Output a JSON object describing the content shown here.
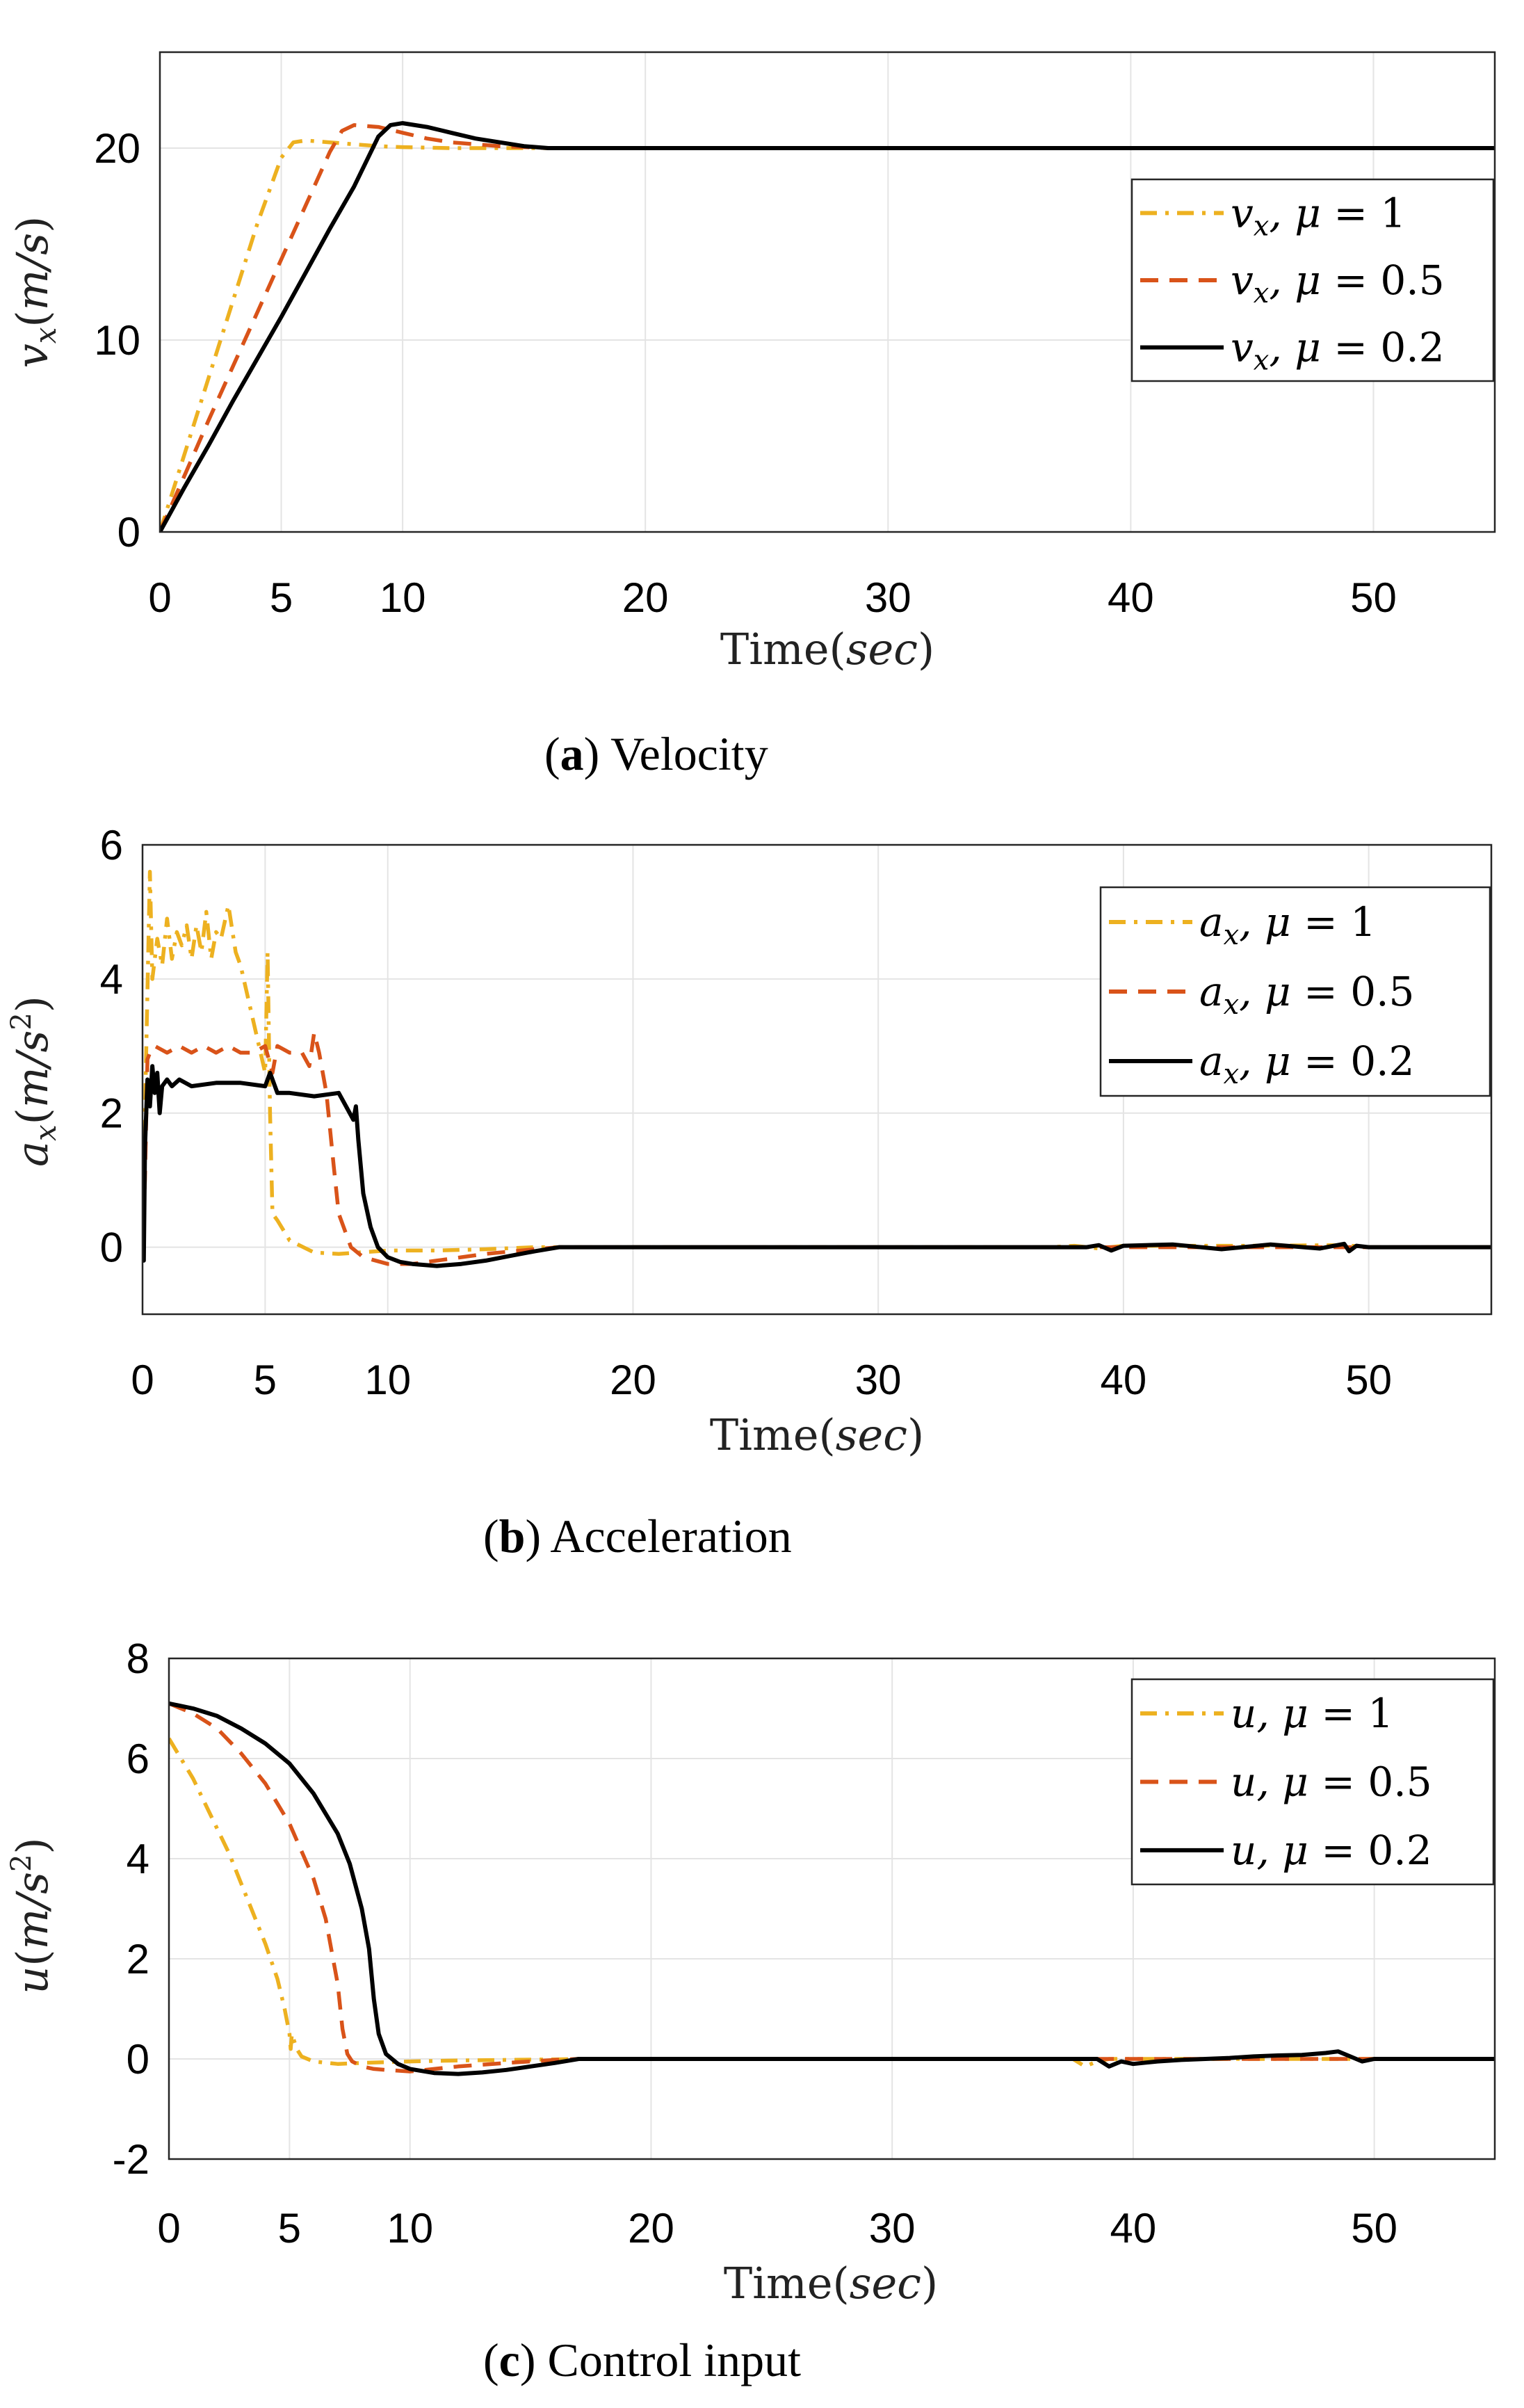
{
  "captions": [
    {
      "letter": "a",
      "text": "Velocity"
    },
    {
      "letter": "b",
      "text": "Acceleration"
    },
    {
      "letter": "c",
      "text": "Control input"
    }
  ],
  "colors": {
    "mu1": "#EDB120",
    "mu05": "#D95319",
    "mu02": "#000000"
  },
  "chart_data": [
    {
      "type": "line",
      "title": "Velocity",
      "xlabel": "Time(sec)",
      "ylabel": "v_x(m/s)",
      "xlim": [
        0,
        55
      ],
      "ylim": [
        0,
        25
      ],
      "xticks": [
        0,
        5,
        10,
        20,
        30,
        40,
        50
      ],
      "yticks": [
        0,
        10,
        20
      ],
      "legend": "top-right",
      "series": [
        {
          "name": "v_x, μ = 1",
          "legend_var": "v_x",
          "mu": "1",
          "style": "dashdot",
          "color": "#EDB120",
          "x": [
            0,
            0.5,
            1,
            2,
            3,
            4,
            5,
            5.5,
            6,
            7,
            8,
            9,
            10,
            12,
            14,
            16,
            20,
            30,
            40,
            55
          ],
          "y": [
            0,
            2,
            4,
            8,
            12,
            16,
            19.5,
            20.3,
            20.4,
            20.3,
            20.2,
            20.1,
            20.05,
            20,
            20,
            20,
            20,
            20,
            20,
            20
          ]
        },
        {
          "name": "v_x, μ = 0.5",
          "legend_var": "v_x",
          "mu": "0.5",
          "style": "dashed",
          "color": "#D95319",
          "x": [
            0,
            1,
            2,
            3,
            4,
            5,
            6,
            7,
            7.5,
            8,
            9,
            10,
            11,
            12,
            14,
            16,
            20,
            30,
            55
          ],
          "y": [
            0,
            2.9,
            5.8,
            8.6,
            11.4,
            14.2,
            17.0,
            19.8,
            20.9,
            21.2,
            21.1,
            20.8,
            20.5,
            20.3,
            20.1,
            20,
            20,
            20,
            20
          ]
        },
        {
          "name": "v_x, μ = 0.2",
          "legend_var": "v_x",
          "mu": "0.2",
          "style": "solid",
          "color": "#000000",
          "x": [
            0,
            1,
            2,
            3,
            4,
            5,
            6,
            7,
            8,
            9,
            9.5,
            10,
            11,
            12,
            13,
            14,
            15,
            16,
            20,
            30,
            55
          ],
          "y": [
            0,
            2.3,
            4.5,
            6.8,
            9.0,
            11.2,
            13.5,
            15.8,
            18.0,
            20.6,
            21.2,
            21.3,
            21.1,
            20.8,
            20.5,
            20.3,
            20.1,
            20,
            20,
            20,
            20
          ]
        }
      ]
    },
    {
      "type": "line",
      "title": "Acceleration",
      "xlabel": "Time(sec)",
      "ylabel": "a_x(m/s²)",
      "xlim": [
        0,
        55
      ],
      "ylim": [
        -1,
        6
      ],
      "xticks": [
        0,
        5,
        10,
        20,
        30,
        40,
        50
      ],
      "yticks": [
        0,
        2,
        4,
        6
      ],
      "legend": "top-right",
      "series": [
        {
          "name": "a_x, μ = 1",
          "legend_var": "a_x",
          "mu": "1",
          "style": "dashdot",
          "color": "#EDB120",
          "x": [
            0,
            0.1,
            0.3,
            0.4,
            0.6,
            0.8,
            1.0,
            1.2,
            1.4,
            1.6,
            1.8,
            2.0,
            2.2,
            2.4,
            2.6,
            2.8,
            3.0,
            3.2,
            3.5,
            3.8,
            4.0,
            4.5,
            5.0,
            5.1,
            5.2,
            5.3,
            5.5,
            6,
            7,
            8,
            10,
            12,
            14,
            16,
            17,
            37,
            38,
            39,
            40,
            45,
            49,
            50,
            55
          ],
          "y": [
            0,
            2.0,
            5.6,
            4.0,
            4.6,
            4.2,
            4.9,
            4.3,
            4.7,
            4.5,
            4.8,
            4.3,
            4.8,
            4.4,
            5.0,
            4.3,
            4.7,
            4.6,
            5.1,
            4.4,
            4.2,
            3.4,
            2.6,
            4.4,
            2.0,
            0.5,
            0.4,
            0.1,
            -0.08,
            -0.1,
            -0.05,
            -0.05,
            -0.03,
            0,
            0,
            0,
            0.02,
            -0.02,
            0.02,
            0.02,
            0.03,
            0,
            0
          ]
        },
        {
          "name": "a_x, μ = 0.5",
          "legend_var": "a_x",
          "mu": "0.5",
          "style": "dashed",
          "color": "#D95319",
          "x": [
            0,
            0.1,
            0.2,
            0.3,
            0.5,
            1.0,
            1.5,
            2.0,
            2.5,
            3.0,
            3.5,
            4.0,
            4.5,
            5.0,
            5.3,
            5.5,
            6.0,
            6.5,
            6.8,
            7.0,
            7.2,
            7.5,
            7.8,
            8.0,
            8.5,
            9,
            10,
            11,
            12,
            14,
            16,
            17,
            55
          ],
          "y": [
            0,
            1.0,
            2.8,
            2.9,
            3.0,
            2.9,
            3.0,
            2.9,
            3.0,
            2.9,
            3.0,
            2.9,
            2.9,
            3.0,
            2.6,
            3.0,
            2.9,
            2.9,
            2.7,
            3.2,
            2.9,
            2.3,
            1.2,
            0.5,
            0.0,
            -0.15,
            -0.25,
            -0.25,
            -0.2,
            -0.1,
            -0.03,
            0,
            0
          ]
        },
        {
          "name": "a_x, μ = 0.2",
          "legend_var": "a_x",
          "mu": "0.2",
          "style": "solid",
          "color": "#000000",
          "x": [
            0,
            0.05,
            0.1,
            0.2,
            0.3,
            0.4,
            0.5,
            0.6,
            0.7,
            0.8,
            1.0,
            1.2,
            1.5,
            2.0,
            3.0,
            4.0,
            5.0,
            5.2,
            5.5,
            6.0,
            7.0,
            8.0,
            8.6,
            8.7,
            8.8,
            9.0,
            9.3,
            9.6,
            10.0,
            10.5,
            11,
            12,
            13,
            14,
            15,
            16,
            17,
            20,
            30,
            38.5,
            39.0,
            39.5,
            40,
            42,
            44,
            46,
            48,
            49,
            49.2,
            49.5,
            50,
            55
          ],
          "y": [
            0,
            -0.2,
            1.5,
            2.5,
            2.1,
            2.7,
            2.3,
            2.6,
            2.0,
            2.4,
            2.5,
            2.4,
            2.5,
            2.4,
            2.45,
            2.45,
            2.4,
            2.6,
            2.3,
            2.3,
            2.25,
            2.3,
            1.9,
            2.1,
            1.6,
            0.8,
            0.3,
            0.0,
            -0.15,
            -0.22,
            -0.25,
            -0.28,
            -0.25,
            -0.2,
            -0.13,
            -0.06,
            0,
            0,
            0,
            0,
            0.03,
            -0.05,
            0.02,
            0.04,
            -0.03,
            0.04,
            -0.02,
            0.05,
            -0.06,
            0.02,
            0,
            0
          ]
        }
      ]
    },
    {
      "type": "line",
      "title": "Control input",
      "xlabel": "Time(sec)",
      "ylabel": "u(m/s²)",
      "xlim": [
        0,
        55
      ],
      "ylim": [
        -2,
        8
      ],
      "xticks": [
        0,
        5,
        10,
        20,
        30,
        40,
        50
      ],
      "yticks": [
        -2,
        0,
        2,
        4,
        6,
        8
      ],
      "legend": "top-right",
      "series": [
        {
          "name": "u, μ = 1",
          "legend_var": "u",
          "mu": "1",
          "style": "dashdot",
          "color": "#EDB120",
          "x": [
            0,
            0.5,
            1,
            1.5,
            2,
            2.5,
            3,
            3.5,
            4,
            4.5,
            4.8,
            5.0,
            5.05,
            5.1,
            5.3,
            5.5,
            6,
            7,
            8,
            10,
            12,
            14,
            16,
            17,
            37.5,
            38,
            38.5,
            39,
            40,
            55
          ],
          "y": [
            6.4,
            6.0,
            5.6,
            5.1,
            4.6,
            4.1,
            3.5,
            2.9,
            2.3,
            1.6,
            1.0,
            0.5,
            0.2,
            0.5,
            0.2,
            0.05,
            -0.05,
            -0.1,
            -0.08,
            -0.05,
            -0.03,
            -0.02,
            -0.01,
            0,
            0,
            -0.15,
            -0.05,
            0,
            0,
            0
          ]
        },
        {
          "name": "u, μ = 0.5",
          "legend_var": "u",
          "mu": "0.5",
          "style": "dashed",
          "color": "#D95319",
          "x": [
            0,
            1,
            2,
            3,
            4,
            5,
            6,
            6.5,
            7,
            7.2,
            7.4,
            7.6,
            8,
            8.5,
            9,
            10,
            11,
            12,
            14,
            16,
            17,
            55
          ],
          "y": [
            7.1,
            6.9,
            6.6,
            6.1,
            5.5,
            4.7,
            3.6,
            2.8,
            1.5,
            0.6,
            0.1,
            -0.05,
            -0.15,
            -0.2,
            -0.22,
            -0.25,
            -0.2,
            -0.15,
            -0.08,
            -0.02,
            0,
            0
          ]
        },
        {
          "name": "u, μ = 0.2",
          "legend_var": "u",
          "mu": "0.2",
          "style": "solid",
          "color": "#000000",
          "x": [
            0,
            1,
            2,
            3,
            4,
            5,
            6,
            7,
            7.5,
            8,
            8.3,
            8.5,
            8.7,
            9,
            9.5,
            10,
            11,
            12,
            13,
            14,
            15,
            16,
            17,
            20,
            30,
            38.5,
            39,
            39.5,
            40,
            41,
            42,
            43,
            44,
            45,
            46,
            47,
            48,
            48.5,
            49,
            49.5,
            50,
            55
          ],
          "y": [
            7.1,
            7.0,
            6.85,
            6.6,
            6.3,
            5.9,
            5.3,
            4.5,
            3.9,
            3.0,
            2.2,
            1.2,
            0.5,
            0.1,
            -0.1,
            -0.2,
            -0.28,
            -0.3,
            -0.27,
            -0.22,
            -0.15,
            -0.08,
            0,
            0,
            0,
            0,
            -0.15,
            -0.05,
            -0.1,
            -0.05,
            -0.02,
            0.0,
            0.02,
            0.05,
            0.07,
            0.08,
            0.12,
            0.15,
            0.05,
            -0.05,
            0,
            0
          ]
        }
      ]
    }
  ]
}
